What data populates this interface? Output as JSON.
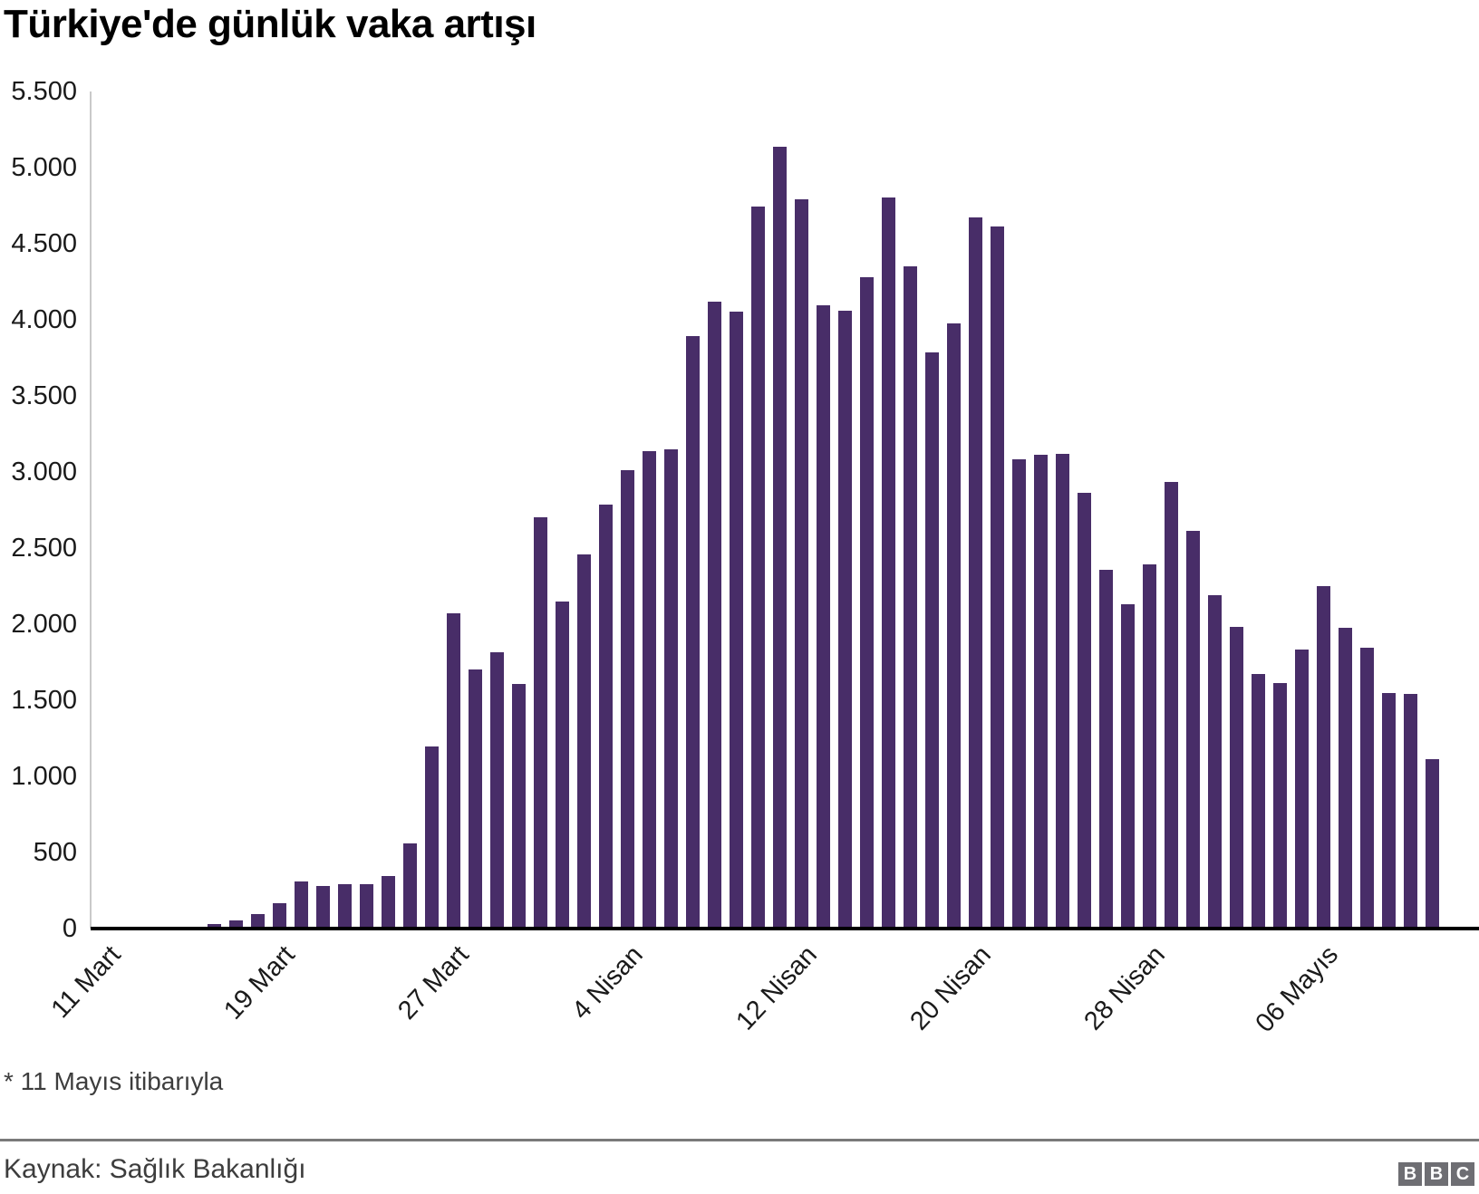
{
  "header": {
    "title": "Türkiye'de günlük vaka artışı"
  },
  "chart_data": {
    "type": "bar",
    "title": "Türkiye'de günlük vaka artışı",
    "xlabel": "",
    "ylabel": "",
    "ylim": [
      0,
      5500
    ],
    "ytick_step": 500,
    "grid": "off",
    "legend": "none",
    "bar_color": "#482d68",
    "categories": [
      "11 Mart",
      "12 Mart",
      "13 Mart",
      "14 Mart",
      "15 Mart",
      "16 Mart",
      "17 Mart",
      "18 Mart",
      "19 Mart",
      "20 Mart",
      "21 Mart",
      "22 Mart",
      "23 Mart",
      "24 Mart",
      "25 Mart",
      "26 Mart",
      "27 Mart",
      "28 Mart",
      "29 Mart",
      "30 Mart",
      "31 Mart",
      "1 Nisan",
      "2 Nisan",
      "3 Nisan",
      "4 Nisan",
      "5 Nisan",
      "6 Nisan",
      "7 Nisan",
      "8 Nisan",
      "9 Nisan",
      "10 Nisan",
      "11 Nisan",
      "12 Nisan",
      "13 Nisan",
      "14 Nisan",
      "15 Nisan",
      "16 Nisan",
      "17 Nisan",
      "18 Nisan",
      "19 Nisan",
      "20 Nisan",
      "21 Nisan",
      "22 Nisan",
      "23 Nisan",
      "24 Nisan",
      "25 Nisan",
      "26 Nisan",
      "27 Nisan",
      "28 Nisan",
      "29 Nisan",
      "30 Nisan",
      "1 Mayıs",
      "2 Mayıs",
      "3 Mayıs",
      "4 Mayıs",
      "5 Mayıs",
      "6 Mayıs",
      "7 Mayıs",
      "8 Mayıs",
      "9 Mayıs",
      "10 Mayıs",
      "11 Mayıs"
    ],
    "values": [
      1,
      0,
      4,
      1,
      12,
      29,
      51,
      93,
      168,
      311,
      277,
      289,
      293,
      343,
      561,
      1196,
      2069,
      1704,
      1815,
      1610,
      2704,
      2148,
      2456,
      2786,
      3013,
      3135,
      3148,
      3892,
      4117,
      4056,
      4747,
      5138,
      4789,
      4093,
      4062,
      4281,
      4801,
      4353,
      3783,
      3977,
      4674,
      4611,
      3083,
      3116,
      3122,
      2861,
      2357,
      2131,
      2392,
      2936,
      2615,
      2188,
      1983,
      1670,
      1614,
      1832,
      2253,
      1977,
      1848,
      1546,
      1542,
      1114
    ],
    "ytick_labels": [
      "0",
      "500",
      "1.000",
      "1.500",
      "2.000",
      "2.500",
      "3.000",
      "3.500",
      "4.000",
      "4.500",
      "5.000",
      "5.500"
    ],
    "xticks": [
      {
        "label": "11 Mart",
        "index": 0
      },
      {
        "label": "19 Mart",
        "index": 8
      },
      {
        "label": "27 Mart",
        "index": 16
      },
      {
        "label": "4 Nisan",
        "index": 24
      },
      {
        "label": "12 Nisan",
        "index": 32
      },
      {
        "label": "20 Nisan",
        "index": 40
      },
      {
        "label": "28 Nisan",
        "index": 48
      },
      {
        "label": "06 Mayıs",
        "index": 56
      }
    ]
  },
  "footer": {
    "footnote": "* 11 Mayıs itibarıyla",
    "source": "Kaynak: Sağlık Bakanlığı",
    "bbc_letters": [
      "B",
      "B",
      "C"
    ]
  }
}
